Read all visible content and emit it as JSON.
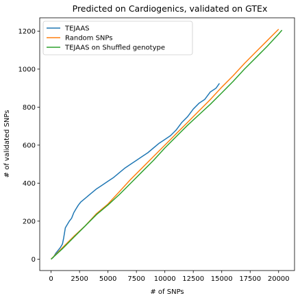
{
  "chart_data": {
    "type": "line",
    "title": "Predicted on Cardiogenics, validated on GTEx",
    "xlabel": "# of SNPs",
    "ylabel": "# of validated SNPs",
    "xlim": [
      -1000,
      21400
    ],
    "ylim": [
      -60,
      1270
    ],
    "xticks": [
      0,
      2500,
      5000,
      7500,
      10000,
      12500,
      15000,
      17500,
      20000
    ],
    "yticks": [
      0,
      200,
      400,
      600,
      800,
      1000,
      1200
    ],
    "legend_position": "top-left",
    "grid": false,
    "series": [
      {
        "name": "TEJAAS",
        "color": "#1f77b4",
        "x": [
          0,
          200,
          400,
          600,
          800,
          1000,
          1100,
          1250,
          1400,
          1600,
          1800,
          2000,
          2200,
          2400,
          2600,
          3000,
          3500,
          4000,
          4500,
          5000,
          5500,
          6000,
          6500,
          7000,
          7500,
          8000,
          8500,
          9000,
          9500,
          10000,
          10500,
          11000,
          11500,
          12000,
          12500,
          13000,
          13500,
          14000,
          14500,
          14800
        ],
        "y": [
          0,
          10,
          30,
          45,
          60,
          80,
          110,
          165,
          180,
          200,
          215,
          245,
          265,
          285,
          300,
          320,
          345,
          370,
          390,
          410,
          430,
          455,
          480,
          500,
          520,
          540,
          560,
          585,
          610,
          630,
          650,
          680,
          720,
          750,
          790,
          820,
          840,
          880,
          900,
          925
        ]
      },
      {
        "name": "Random SNPs",
        "color": "#ff7f0e",
        "x": [
          0,
          1000,
          2000,
          3000,
          4000,
          5000,
          6000,
          7000,
          8000,
          9000,
          10000,
          11000,
          12000,
          13000,
          14000,
          15000,
          16000,
          17000,
          18000,
          19000,
          20000
        ],
        "y": [
          0,
          60,
          120,
          175,
          240,
          290,
          355,
          420,
          480,
          540,
          600,
          660,
          720,
          780,
          840,
          905,
          965,
          1030,
          1090,
          1150,
          1210
        ]
      },
      {
        "name": "TEJAAS on Shuffled genotype",
        "color": "#2ca02c",
        "x": [
          0,
          1000,
          2000,
          3000,
          4000,
          5000,
          6000,
          7000,
          8000,
          9000,
          10000,
          11000,
          12000,
          13000,
          14000,
          15000,
          16000,
          17000,
          18000,
          19000,
          20000,
          20300
        ],
        "y": [
          0,
          55,
          115,
          175,
          235,
          285,
          340,
          400,
          460,
          520,
          585,
          645,
          705,
          760,
          815,
          875,
          935,
          1000,
          1060,
          1120,
          1185,
          1205
        ]
      }
    ]
  }
}
